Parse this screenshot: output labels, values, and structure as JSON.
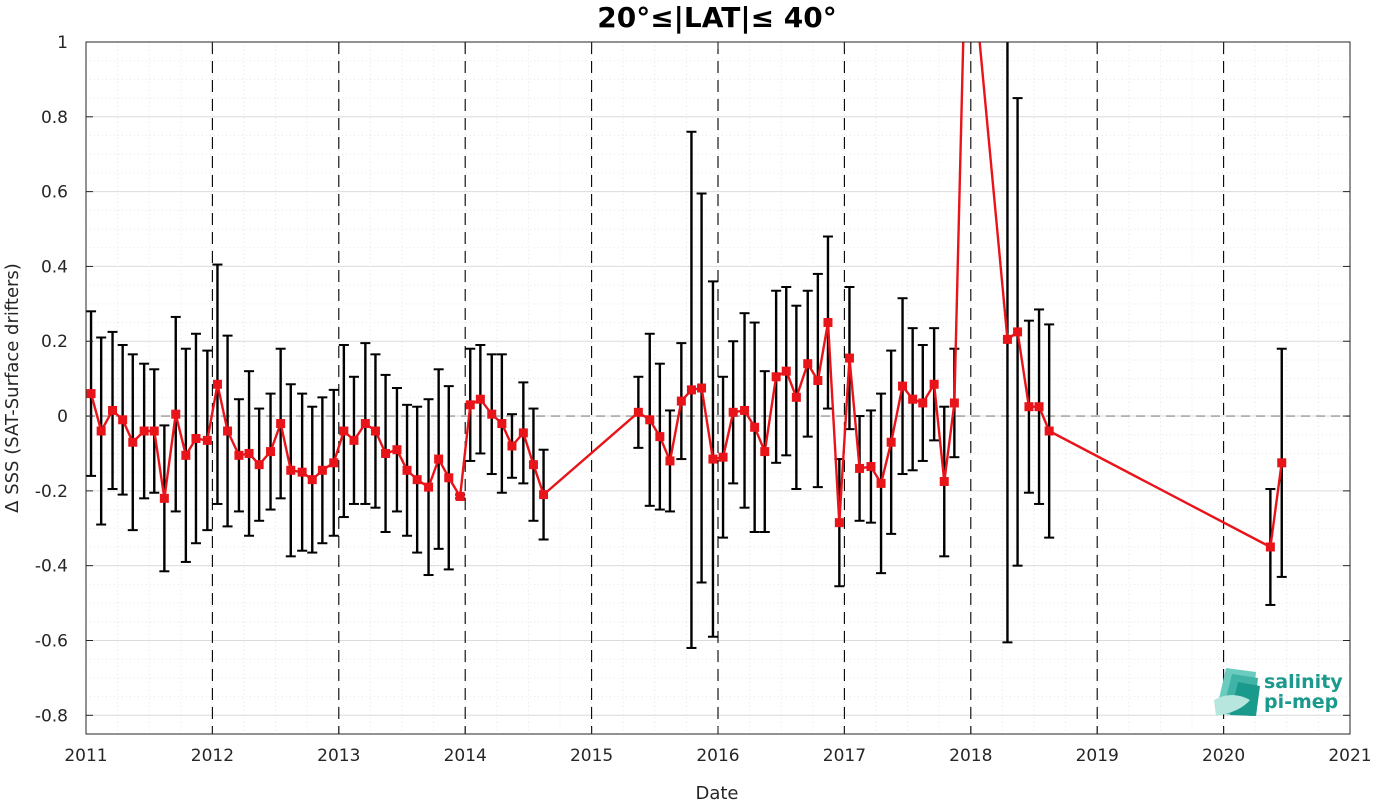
{
  "chart_data": {
    "type": "line",
    "title": "20°≤|LAT|≤ 40°",
    "xlabel": "Date",
    "ylabel": "Δ SSS (SAT-Surface drifters)",
    "xlim": [
      2011,
      2021
    ],
    "ylim": [
      -0.85,
      1.0
    ],
    "xticks": [
      "2011",
      "2012",
      "2013",
      "2014",
      "2015",
      "2016",
      "2017",
      "2018",
      "2019",
      "2020",
      "2021"
    ],
    "yticks": [
      "1",
      "0.8",
      "0.6",
      "0.4",
      "0.2",
      "0",
      "-0.2",
      "-0.4",
      "-0.6",
      "-0.8"
    ],
    "grid": true,
    "dashed_year_lines": true,
    "zero_line": true,
    "colors": {
      "series": "#e8141a",
      "errorbar": "#000000",
      "zero_line": "#999999"
    },
    "series": [
      {
        "points": [
          {
            "x": 2011.04,
            "y": 0.06,
            "err": 0.22
          },
          {
            "x": 2011.12,
            "y": -0.04,
            "err": 0.25
          },
          {
            "x": 2011.21,
            "y": 0.015,
            "err": 0.21
          },
          {
            "x": 2011.29,
            "y": -0.01,
            "err": 0.2
          },
          {
            "x": 2011.37,
            "y": -0.07,
            "err": 0.235
          },
          {
            "x": 2011.46,
            "y": -0.04,
            "err": 0.18
          },
          {
            "x": 2011.54,
            "y": -0.04,
            "err": 0.165
          },
          {
            "x": 2011.62,
            "y": -0.22,
            "err": 0.195
          },
          {
            "x": 2011.71,
            "y": 0.005,
            "err": 0.26
          },
          {
            "x": 2011.79,
            "y": -0.105,
            "err": 0.285
          },
          {
            "x": 2011.87,
            "y": -0.06,
            "err": 0.28
          },
          {
            "x": 2011.96,
            "y": -0.065,
            "err": 0.24
          },
          {
            "x": 2012.04,
            "y": 0.085,
            "err": 0.32
          },
          {
            "x": 2012.12,
            "y": -0.04,
            "err": 0.255
          },
          {
            "x": 2012.21,
            "y": -0.105,
            "err": 0.15
          },
          {
            "x": 2012.29,
            "y": -0.1,
            "err": 0.22
          },
          {
            "x": 2012.37,
            "y": -0.13,
            "err": 0.15
          },
          {
            "x": 2012.46,
            "y": -0.095,
            "err": 0.155
          },
          {
            "x": 2012.54,
            "y": -0.02,
            "err": 0.2
          },
          {
            "x": 2012.62,
            "y": -0.145,
            "err": 0.23
          },
          {
            "x": 2012.71,
            "y": -0.15,
            "err": 0.21
          },
          {
            "x": 2012.79,
            "y": -0.17,
            "err": 0.195
          },
          {
            "x": 2012.87,
            "y": -0.145,
            "err": 0.195
          },
          {
            "x": 2012.96,
            "y": -0.125,
            "err": 0.195
          },
          {
            "x": 2013.04,
            "y": -0.04,
            "err": 0.23
          },
          {
            "x": 2013.12,
            "y": -0.065,
            "err": 0.17
          },
          {
            "x": 2013.21,
            "y": -0.02,
            "err": 0.215
          },
          {
            "x": 2013.29,
            "y": -0.04,
            "err": 0.205
          },
          {
            "x": 2013.37,
            "y": -0.1,
            "err": 0.21
          },
          {
            "x": 2013.46,
            "y": -0.09,
            "err": 0.165
          },
          {
            "x": 2013.54,
            "y": -0.145,
            "err": 0.175
          },
          {
            "x": 2013.62,
            "y": -0.17,
            "err": 0.195
          },
          {
            "x": 2013.71,
            "y": -0.19,
            "err": 0.235
          },
          {
            "x": 2013.79,
            "y": -0.115,
            "err": 0.24
          },
          {
            "x": 2013.87,
            "y": -0.165,
            "err": 0.245
          },
          {
            "x": 2013.96,
            "y": -0.215,
            "err": 0.005
          },
          {
            "x": 2014.04,
            "y": 0.03,
            "err": 0.15
          },
          {
            "x": 2014.12,
            "y": 0.045,
            "err": 0.145
          },
          {
            "x": 2014.21,
            "y": 0.005,
            "err": 0.16
          },
          {
            "x": 2014.29,
            "y": -0.02,
            "err": 0.185
          },
          {
            "x": 2014.37,
            "y": -0.08,
            "err": 0.085
          },
          {
            "x": 2014.46,
            "y": -0.045,
            "err": 0.135
          },
          {
            "x": 2014.54,
            "y": -0.13,
            "err": 0.15
          },
          {
            "x": 2014.62,
            "y": -0.21,
            "err": 0.12
          },
          {
            "x": 2015.37,
            "y": 0.01,
            "err": 0.095
          },
          {
            "x": 2015.46,
            "y": -0.01,
            "err": 0.23
          },
          {
            "x": 2015.54,
            "y": -0.055,
            "err": 0.195
          },
          {
            "x": 2015.62,
            "y": -0.12,
            "err": 0.135
          },
          {
            "x": 2015.71,
            "y": 0.04,
            "err": 0.155
          },
          {
            "x": 2015.79,
            "y": 0.07,
            "err": 0.69
          },
          {
            "x": 2015.87,
            "y": 0.075,
            "err": 0.52
          },
          {
            "x": 2015.96,
            "y": -0.115,
            "err": 0.475
          },
          {
            "x": 2016.04,
            "y": -0.11,
            "err": 0.215
          },
          {
            "x": 2016.12,
            "y": 0.01,
            "err": 0.19
          },
          {
            "x": 2016.21,
            "y": 0.015,
            "err": 0.26
          },
          {
            "x": 2016.29,
            "y": -0.03,
            "err": 0.28
          },
          {
            "x": 2016.37,
            "y": -0.095,
            "err": 0.215
          },
          {
            "x": 2016.46,
            "y": 0.105,
            "err": 0.23
          },
          {
            "x": 2016.54,
            "y": 0.12,
            "err": 0.225
          },
          {
            "x": 2016.62,
            "y": 0.05,
            "err": 0.245
          },
          {
            "x": 2016.71,
            "y": 0.14,
            "err": 0.195
          },
          {
            "x": 2016.79,
            "y": 0.095,
            "err": 0.285
          },
          {
            "x": 2016.87,
            "y": 0.25,
            "err": 0.23
          },
          {
            "x": 2016.96,
            "y": -0.285,
            "err": 0.17
          },
          {
            "x": 2017.04,
            "y": 0.155,
            "err": 0.19
          },
          {
            "x": 2017.12,
            "y": -0.14,
            "err": 0.14
          },
          {
            "x": 2017.21,
            "y": -0.135,
            "err": 0.15
          },
          {
            "x": 2017.29,
            "y": -0.18,
            "err": 0.24
          },
          {
            "x": 2017.37,
            "y": -0.07,
            "err": 0.245
          },
          {
            "x": 2017.46,
            "y": 0.08,
            "err": 0.235
          },
          {
            "x": 2017.54,
            "y": 0.045,
            "err": 0.19
          },
          {
            "x": 2017.62,
            "y": 0.035,
            "err": 0.155
          },
          {
            "x": 2017.71,
            "y": 0.085,
            "err": 0.15
          },
          {
            "x": 2017.79,
            "y": -0.175,
            "err": 0.2
          },
          {
            "x": 2017.87,
            "y": 0.035,
            "err": 0.145
          },
          {
            "x": 2018.29,
            "y": 0.205,
            "err": 0.81
          },
          {
            "x": 2018.37,
            "y": 0.225,
            "err": 0.625
          },
          {
            "x": 2018.46,
            "y": 0.025,
            "err": 0.23
          },
          {
            "x": 2018.54,
            "y": 0.025,
            "err": 0.26
          },
          {
            "x": 2018.62,
            "y": -0.04,
            "err": 0.285
          },
          {
            "x": 2020.37,
            "y": -0.35,
            "err": 0.155
          },
          {
            "x": 2020.46,
            "y": -0.125,
            "err": 0.305
          }
        ]
      }
    ],
    "offscale_peak": {
      "x": 2018.08,
      "note": "line exits above y=1 between 2017.96 and 2018.21"
    }
  }
}
